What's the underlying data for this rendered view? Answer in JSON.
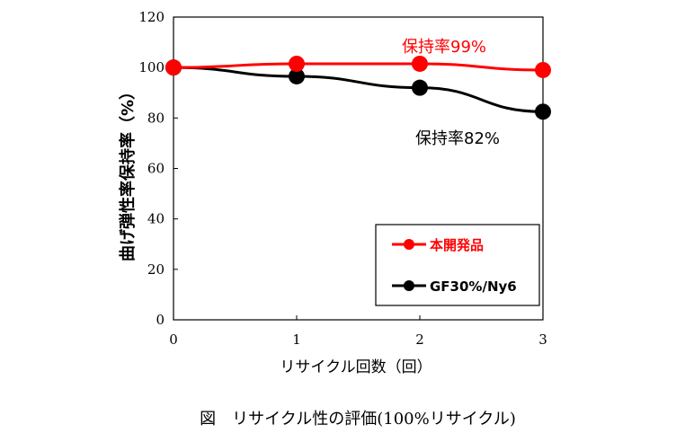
{
  "chart_data": {
    "type": "line",
    "xlabel": "リサイクル回数（回）",
    "ylabel": "曲げ弾性率保持率（%）",
    "x": [
      0,
      1,
      2,
      3
    ],
    "xticks": [
      "0",
      "1",
      "2",
      "3"
    ],
    "yticks": [
      "0",
      "20",
      "40",
      "60",
      "80",
      "100",
      "120"
    ],
    "xlim": [
      0,
      3
    ],
    "ylim": [
      0,
      120
    ],
    "grid": false,
    "legend_position": "bottom-right",
    "series": [
      {
        "name": "本開発品",
        "color": "#ff0000",
        "values": [
          100,
          101.5,
          101.5,
          99
        ]
      },
      {
        "name": "GF30%/Ny6",
        "color": "#000000",
        "values": [
          100,
          96.5,
          92,
          82.5
        ]
      }
    ],
    "annotations": [
      {
        "text": "保持率99%",
        "color": "#ff0000"
      },
      {
        "text": "保持率82%",
        "color": "#000000"
      }
    ],
    "caption": "図　リサイクル性の評価(100%リサイクル)"
  }
}
